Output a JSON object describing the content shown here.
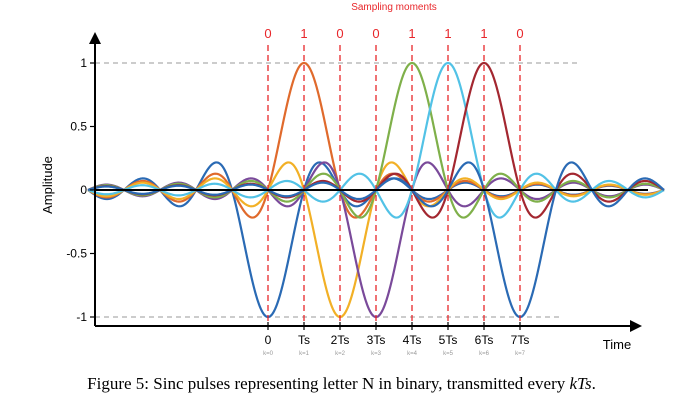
{
  "chart_data": {
    "type": "line",
    "title": "Sampling moments",
    "xlabel": "Time",
    "ylabel": "Amplitude",
    "ylim": [
      -1,
      1
    ],
    "y_ticks": [
      "1",
      "0.5",
      "0",
      "-0.5",
      "-1"
    ],
    "y_tick_values": [
      1,
      0.5,
      0,
      -0.5,
      -1
    ],
    "xlim": [
      -5,
      11
    ],
    "sampling_moments_k": [
      0,
      1,
      2,
      3,
      4,
      5,
      6,
      7
    ],
    "bits": [
      "0",
      "1",
      "0",
      "0",
      "1",
      "1",
      "1",
      "0"
    ],
    "x_ticks": [
      "0",
      "Ts",
      "2Ts",
      "3Ts",
      "4Ts",
      "5Ts",
      "6Ts",
      "7Ts"
    ],
    "k_labels": [
      "k=0",
      "k=1",
      "k=2",
      "k=3",
      "k=4",
      "k=5",
      "k=6",
      "k=7"
    ],
    "series": [
      {
        "center": 0,
        "amplitude": -1,
        "color": "#2a6ab4"
      },
      {
        "center": 1,
        "amplitude": 1,
        "color": "#e06a2c"
      },
      {
        "center": 2,
        "amplitude": -1,
        "color": "#f2b026"
      },
      {
        "center": 3,
        "amplitude": -1,
        "color": "#7a4a9a"
      },
      {
        "center": 4,
        "amplitude": 1,
        "color": "#7fb04a"
      },
      {
        "center": 5,
        "amplitude": 1,
        "color": "#52c2e6"
      },
      {
        "center": 6,
        "amplitude": 1,
        "color": "#a32730"
      },
      {
        "center": 7,
        "amplitude": -1,
        "color": "#2a6ab4"
      }
    ],
    "colors": {
      "marker_lines": "#e8262a",
      "title": "#e8262a",
      "axis": "#000000",
      "dashed_ref": "#999999"
    }
  },
  "caption": {
    "prefix": "Figure 5: Sinc pulses representing letter N in binary, transmitted every ",
    "math": "kTs",
    "suffix": "."
  }
}
